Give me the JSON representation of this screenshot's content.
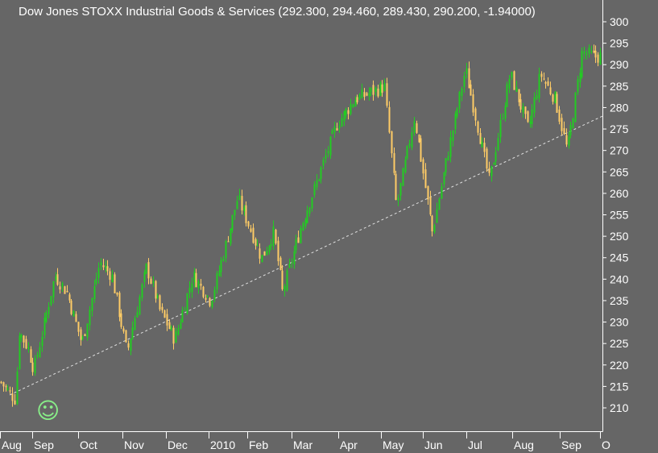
{
  "chart_data": {
    "type": "candlestick",
    "title": "Dow Jones STOXX Industrial Goods & Services (292.300, 294.460, 289.430, 290.200, -1.94000)",
    "last_bar": {
      "open": 292.3,
      "high": 294.46,
      "low": 289.43,
      "close": 290.2,
      "change": -1.94
    },
    "ylim": [
      205,
      302
    ],
    "y_ticks": [
      210,
      215,
      220,
      225,
      230,
      235,
      240,
      245,
      250,
      255,
      260,
      265,
      270,
      275,
      280,
      285,
      290,
      295,
      300
    ],
    "x_tick_labels": [
      "Aug",
      "Sep",
      "Oct",
      "Nov",
      "Dec",
      "2010",
      "Feb",
      "Mar",
      "Apr",
      "May",
      "Jun",
      "Jul",
      "Aug",
      "Sep",
      "O"
    ],
    "grid": false,
    "trendline": {
      "from": {
        "month": "Aug",
        "value": 213
      },
      "to": {
        "month": "Sep",
        "value": 278
      },
      "style": "dashed"
    },
    "colors": {
      "background": "#666666",
      "up": "#22cc22",
      "down": "#ffcc66",
      "text": "#ffffff",
      "axis": "#ffffff",
      "trendline": "#e0e0e0",
      "smiley": "#88ee88"
    },
    "close_path": [
      [
        0.0,
        216
      ],
      [
        0.024,
        212
      ],
      [
        0.03,
        228
      ],
      [
        0.045,
        224
      ],
      [
        0.055,
        219
      ],
      [
        0.09,
        241
      ],
      [
        0.11,
        237
      ],
      [
        0.135,
        225
      ],
      [
        0.165,
        244
      ],
      [
        0.185,
        241
      ],
      [
        0.21,
        223
      ],
      [
        0.243,
        243
      ],
      [
        0.265,
        233
      ],
      [
        0.29,
        226
      ],
      [
        0.32,
        241
      ],
      [
        0.35,
        235
      ],
      [
        0.375,
        248
      ],
      [
        0.395,
        259
      ],
      [
        0.41,
        254
      ],
      [
        0.435,
        245
      ],
      [
        0.455,
        251
      ],
      [
        0.47,
        237
      ],
      [
        0.5,
        252
      ],
      [
        0.53,
        264
      ],
      [
        0.56,
        276
      ],
      [
        0.59,
        282
      ],
      [
        0.64,
        285
      ],
      [
        0.66,
        257
      ],
      [
        0.69,
        278
      ],
      [
        0.72,
        251
      ],
      [
        0.745,
        269
      ],
      [
        0.775,
        289
      ],
      [
        0.815,
        263
      ],
      [
        0.85,
        288
      ],
      [
        0.88,
        275
      ],
      [
        0.9,
        288
      ],
      [
        0.925,
        282
      ],
      [
        0.945,
        270
      ],
      [
        0.97,
        293
      ],
      [
        0.99,
        292
      ]
    ]
  },
  "smiley_glyph": "☺"
}
